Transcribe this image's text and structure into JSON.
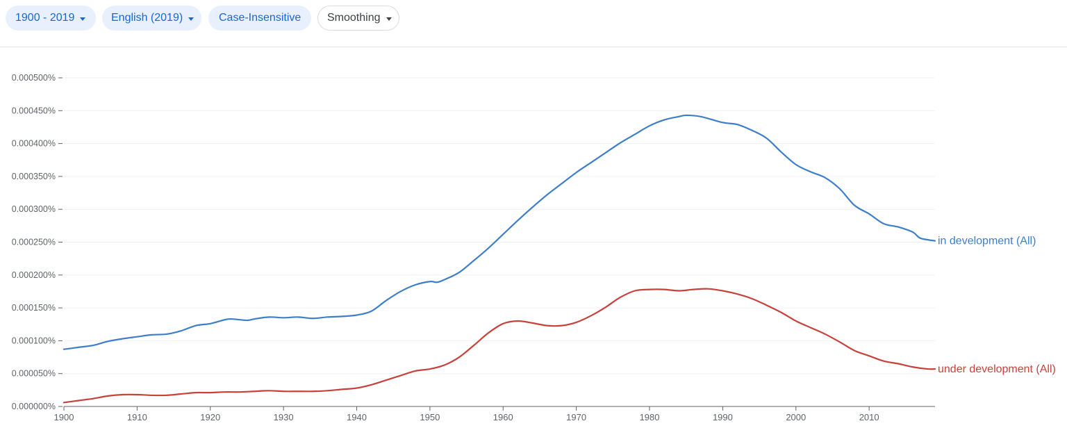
{
  "toolbar": {
    "year_range": "1900 - 2019",
    "corpus": "English (2019)",
    "case": "Case-Insensitive",
    "smoothing": "Smoothing"
  },
  "colors": {
    "series_in_development": "#3d7ec9",
    "series_under_development": "#c8403a",
    "axis": "#5f6368",
    "grid": "#f1f1f1"
  },
  "chart_data": {
    "type": "line",
    "title": "",
    "xlabel": "",
    "ylabel": "",
    "xlim": [
      1900,
      2019
    ],
    "ylim": [
      0,
      0.0005
    ],
    "x_ticks": [
      1900,
      1910,
      1920,
      1930,
      1940,
      1950,
      1960,
      1970,
      1980,
      1990,
      2000,
      2010
    ],
    "x_tick_labels": [
      "1900",
      "1910",
      "1920",
      "1930",
      "1940",
      "1950",
      "1960",
      "1970",
      "1980",
      "1990",
      "2000",
      "2010"
    ],
    "y_ticks": [
      0,
      5e-05,
      0.0001,
      0.00015,
      0.0002,
      0.00025,
      0.0003,
      0.00035,
      0.0004,
      0.00045,
      0.0005
    ],
    "y_tick_labels": [
      "0.000000%",
      "0.000050%",
      "0.000100%",
      "0.000150%",
      "0.000200%",
      "0.000250%",
      "0.000300%",
      "0.000350%",
      "0.000400%",
      "0.000450%",
      "0.000500%"
    ],
    "grid": true,
    "legend": "inline-end-of-line",
    "series": [
      {
        "name": "in development (All)",
        "x": [
          1900,
          1902,
          1904,
          1906,
          1908,
          1910,
          1912,
          1914,
          1916,
          1918,
          1920,
          1922,
          1923,
          1925,
          1926,
          1928,
          1930,
          1932,
          1934,
          1936,
          1938,
          1940,
          1942,
          1944,
          1946,
          1948,
          1950,
          1951,
          1952,
          1954,
          1956,
          1958,
          1960,
          1962,
          1964,
          1966,
          1968,
          1970,
          1972,
          1974,
          1976,
          1978,
          1980,
          1982,
          1984,
          1985,
          1987,
          1990,
          1992,
          1994,
          1996,
          1998,
          2000,
          2002,
          2004,
          2006,
          2008,
          2010,
          2012,
          2014,
          2016,
          2017,
          2019
        ],
        "values": [
          8.7e-05,
          9e-05,
          9.3e-05,
          9.9e-05,
          0.000103,
          0.000106,
          0.000109,
          0.00011,
          0.000115,
          0.000123,
          0.000126,
          0.000132,
          0.000133,
          0.000131,
          0.000133,
          0.000136,
          0.000135,
          0.000136,
          0.000134,
          0.000136,
          0.000137,
          0.000139,
          0.000145,
          0.000161,
          0.000175,
          0.000185,
          0.00019,
          0.000189,
          0.000193,
          0.000204,
          0.000222,
          0.000241,
          0.000262,
          0.000283,
          0.000303,
          0.000322,
          0.000339,
          0.000356,
          0.000371,
          0.000386,
          0.000401,
          0.000414,
          0.000427,
          0.000436,
          0.000441,
          0.000443,
          0.000441,
          0.000432,
          0.000429,
          0.00042,
          0.000408,
          0.000387,
          0.000368,
          0.000357,
          0.000348,
          0.000331,
          0.000306,
          0.000293,
          0.000278,
          0.000273,
          0.000265,
          0.000256,
          0.000252
        ]
      },
      {
        "name": "under development (All)",
        "x": [
          1900,
          1902,
          1904,
          1906,
          1908,
          1910,
          1912,
          1914,
          1916,
          1918,
          1920,
          1922,
          1924,
          1926,
          1928,
          1930,
          1932,
          1934,
          1936,
          1938,
          1940,
          1942,
          1944,
          1946,
          1948,
          1950,
          1952,
          1954,
          1956,
          1958,
          1960,
          1962,
          1964,
          1966,
          1968,
          1970,
          1972,
          1974,
          1976,
          1978,
          1980,
          1982,
          1984,
          1986,
          1988,
          1990,
          1992,
          1994,
          1996,
          1998,
          2000,
          2002,
          2004,
          2006,
          2008,
          2010,
          2012,
          2014,
          2016,
          2018,
          2019
        ],
        "values": [
          6e-06,
          9e-06,
          1.2e-05,
          1.6e-05,
          1.8e-05,
          1.8e-05,
          1.7e-05,
          1.7e-05,
          1.9e-05,
          2.1e-05,
          2.1e-05,
          2.2e-05,
          2.2e-05,
          2.3e-05,
          2.4e-05,
          2.3e-05,
          2.3e-05,
          2.3e-05,
          2.4e-05,
          2.6e-05,
          2.8e-05,
          3.3e-05,
          4e-05,
          4.7e-05,
          5.4e-05,
          5.7e-05,
          6.3e-05,
          7.5e-05,
          9.3e-05,
          0.000112,
          0.000126,
          0.00013,
          0.000127,
          0.000123,
          0.000123,
          0.000128,
          0.000138,
          0.000151,
          0.000166,
          0.000176,
          0.000178,
          0.000178,
          0.000176,
          0.000178,
          0.000179,
          0.000176,
          0.000171,
          0.000164,
          0.000154,
          0.000143,
          0.00013,
          0.00012,
          0.00011,
          9.8e-05,
          8.5e-05,
          7.7e-05,
          6.9e-05,
          6.5e-05,
          6e-05,
          5.7e-05,
          5.7e-05
        ]
      }
    ]
  }
}
